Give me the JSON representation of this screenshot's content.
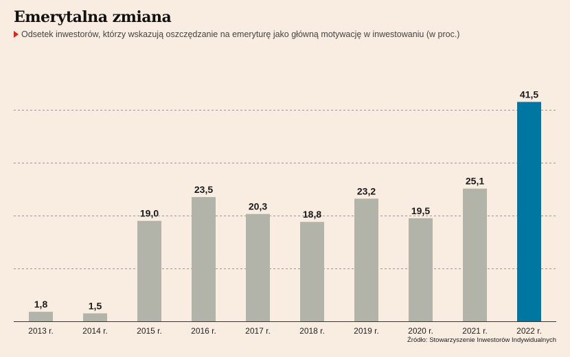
{
  "header": {
    "title": "Emerytalna zmiana",
    "subtitle": "Odsetek inwestorów, którzy wskazują oszczędzanie na emeryturę jako główną motywację w inwestowaniu (w proc.)"
  },
  "source": "Źródło: Stowarzyszenie Inwestorów Indywidualnych",
  "colors": {
    "background": "#f9ece1",
    "bar_default": "#b3b4a9",
    "bar_highlight": "#0077a0",
    "accent_marker": "#e2231a"
  },
  "chart_data": {
    "type": "bar",
    "title": "Emerytalna zmiana",
    "categories": [
      "2013 r.",
      "2014 r.",
      "2015 r.",
      "2016 r.",
      "2017 r.",
      "2018 r.",
      "2019 r.",
      "2020 r.",
      "2021 r.",
      "2022 r."
    ],
    "values": [
      1.8,
      1.5,
      19.0,
      23.5,
      20.3,
      18.8,
      23.2,
      19.5,
      25.1,
      41.5
    ],
    "value_labels": [
      "1,8",
      "1,5",
      "19,0",
      "23,5",
      "20,3",
      "18,8",
      "23,2",
      "19,5",
      "25,1",
      "41,5"
    ],
    "highlight_index": 9,
    "ylim": [
      0,
      45
    ],
    "gridlines_at": [
      10,
      20,
      30,
      40
    ],
    "grid": true,
    "xlabel": "",
    "ylabel": ""
  }
}
